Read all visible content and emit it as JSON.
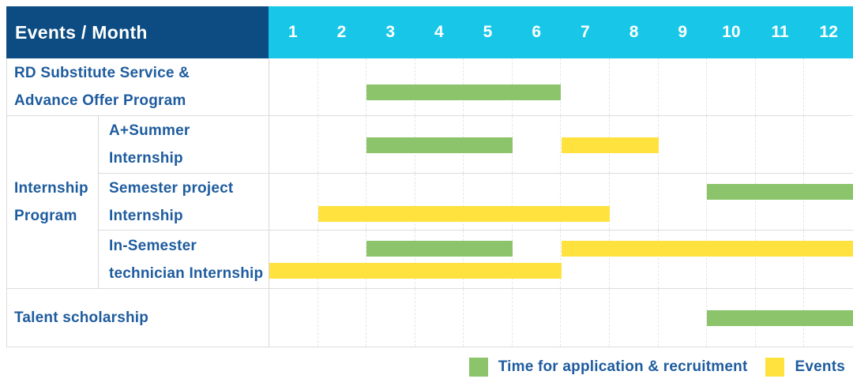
{
  "header": {
    "title": "Events / Month",
    "months": [
      "1",
      "2",
      "3",
      "4",
      "5",
      "6",
      "7",
      "8",
      "9",
      "10",
      "11",
      "12"
    ]
  },
  "colors": {
    "header_navy": "#0d4c82",
    "header_cyan": "#18c7e8",
    "recruitment_green": "#8bc46b",
    "events_yellow": "#ffe23e",
    "label_blue": "#1e5c9e",
    "grid_gray": "#dcdcdc"
  },
  "chart_data": {
    "type": "gantt",
    "title": "Events / Month",
    "x_axis": {
      "unit": "month",
      "ticks": [
        1,
        2,
        3,
        4,
        5,
        6,
        7,
        8,
        9,
        10,
        11,
        12
      ],
      "range": [
        1,
        12
      ]
    },
    "series": [
      {
        "name": "Time for application & recruitment",
        "color": "#8bc46b",
        "key": "recruitment"
      },
      {
        "name": "Events",
        "color": "#ffe23e",
        "key": "events"
      }
    ],
    "group": {
      "label": "Internship Program",
      "label_lines": [
        "Internship",
        "Program"
      ]
    },
    "rows": [
      {
        "label": "RD Substitute Service & Advance Offer Program",
        "label_lines": [
          "RD Substitute Service &",
          "Advance Offer Program"
        ],
        "group": null,
        "bars": [
          {
            "series": "recruitment",
            "start_month": 3,
            "end_month": 6,
            "track": "mid-low"
          }
        ]
      },
      {
        "label": "A+Summer Internship",
        "label_lines": [
          "A+Summer",
          "Internship"
        ],
        "group": "Internship Program",
        "bars": [
          {
            "series": "recruitment",
            "start_month": 3,
            "end_month": 5,
            "track": "middle"
          },
          {
            "series": "events",
            "start_month": 7,
            "end_month": 8,
            "track": "middle"
          }
        ]
      },
      {
        "label": "Semester project Internship",
        "label_lines": [
          "Semester project",
          "Internship"
        ],
        "group": "Internship Program",
        "bars": [
          {
            "series": "recruitment",
            "start_month": 10,
            "end_month": 12,
            "track": "top"
          },
          {
            "series": "events",
            "start_month": 2,
            "end_month": 7,
            "track": "bottom"
          }
        ]
      },
      {
        "label": "In-Semester technician Internship",
        "label_lines": [
          "In-Semester",
          "technician Internship"
        ],
        "group": "Internship Program",
        "bars": [
          {
            "series": "recruitment",
            "start_month": 3,
            "end_month": 5,
            "track": "top"
          },
          {
            "series": "events",
            "start_month": 7,
            "end_month": 12,
            "track": "top"
          },
          {
            "series": "events",
            "start_month": 1,
            "end_month": 6,
            "track": "bottom"
          }
        ]
      },
      {
        "label": "Talent scholarship",
        "label_lines": [
          "Talent scholarship"
        ],
        "group": null,
        "bars": [
          {
            "series": "recruitment",
            "start_month": 10,
            "end_month": 12,
            "track": "middle"
          }
        ]
      }
    ]
  },
  "legend": {
    "items": [
      {
        "label": "Time for application & recruitment",
        "color": "#8bc46b",
        "key": "recruitment",
        "swatch_icon": "green-square-icon"
      },
      {
        "label": "Events",
        "color": "#ffe23e",
        "key": "events",
        "swatch_icon": "yellow-square-icon"
      }
    ]
  }
}
